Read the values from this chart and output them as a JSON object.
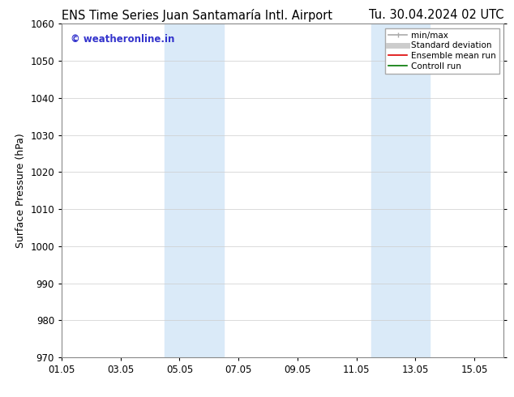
{
  "title_left": "ENS Time Series Juan Santamaría Intl. Airport",
  "title_right": "Tu. 30.04.2024 02 UTC",
  "ylabel": "Surface Pressure (hPa)",
  "ylim": [
    970,
    1060
  ],
  "yticks": [
    970,
    980,
    990,
    1000,
    1010,
    1020,
    1030,
    1040,
    1050,
    1060
  ],
  "xtick_labels": [
    "01.05",
    "03.05",
    "05.05",
    "07.05",
    "09.05",
    "11.05",
    "13.05",
    "15.05"
  ],
  "xtick_positions": [
    0,
    2,
    4,
    6,
    8,
    10,
    12,
    14
  ],
  "xlim": [
    0,
    15
  ],
  "shaded_regions": [
    {
      "xmin": 3.5,
      "xmax": 5.5,
      "color": "#daeaf8"
    },
    {
      "xmin": 10.5,
      "xmax": 12.5,
      "color": "#daeaf8"
    }
  ],
  "watermark_text": "© weatheronline.in",
  "watermark_color": "#3333cc",
  "background_color": "#ffffff",
  "plot_bg_color": "#ffffff",
  "grid_color": "#cccccc",
  "legend_items": [
    {
      "label": "min/max",
      "color": "#aaaaaa",
      "lw": 1.2,
      "ls": "-",
      "type": "minmax"
    },
    {
      "label": "Standard deviation",
      "color": "#cccccc",
      "lw": 5,
      "ls": "-",
      "type": "line"
    },
    {
      "label": "Ensemble mean run",
      "color": "#dd0000",
      "lw": 1.2,
      "ls": "-",
      "type": "line"
    },
    {
      "label": "Controll run",
      "color": "#007700",
      "lw": 1.2,
      "ls": "-",
      "type": "line"
    }
  ],
  "title_fontsize": 10.5,
  "tick_fontsize": 8.5,
  "ylabel_fontsize": 9,
  "watermark_fontsize": 8.5
}
